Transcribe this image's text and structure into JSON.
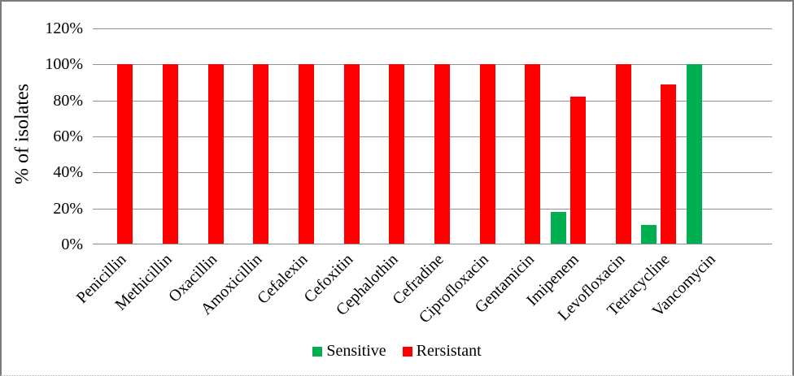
{
  "chart_data": {
    "type": "bar",
    "title": "",
    "ylabel": "% of isolates",
    "xlabel": "",
    "categories": [
      "Penicillin",
      "Methicillin",
      "Oxacillin",
      "Amoxicillin",
      "Cefalexin",
      "Cefoxitin",
      "Cephalothin",
      "Cefradine",
      "Ciprofloxacin",
      "Gentamicin",
      "Imipenem",
      "Levofloxacin",
      "Tetracycline",
      "Vancomycin"
    ],
    "series": [
      {
        "name": "Sensitive",
        "color": "#00B050",
        "values": [
          0,
          0,
          0,
          0,
          0,
          0,
          0,
          0,
          0,
          0,
          18,
          0,
          11,
          100
        ]
      },
      {
        "name": "Rersistant",
        "color": "#FF0000",
        "values": [
          100,
          100,
          100,
          100,
          100,
          100,
          100,
          100,
          100,
          100,
          82,
          100,
          89,
          0
        ]
      }
    ],
    "ylim": [
      0,
      120
    ],
    "ytick_step": 20,
    "ytick_labels": [
      "0%",
      "20%",
      "40%",
      "60%",
      "80%",
      "100%",
      "120%"
    ],
    "grid": true,
    "legend_position": "bottom",
    "trailing_empty_slots": 1
  }
}
